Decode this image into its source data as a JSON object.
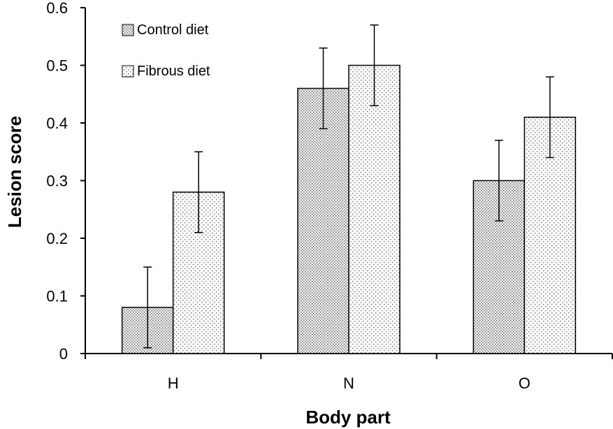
{
  "chart_data": {
    "type": "bar",
    "title": "",
    "xlabel": "Body part",
    "ylabel": "Lesion score",
    "categories": [
      "H",
      "N",
      "O"
    ],
    "series": [
      {
        "name": "Control diet",
        "values": [
          0.08,
          0.46,
          0.3
        ],
        "errors": [
          0.07,
          0.07,
          0.07
        ],
        "pattern": "dense-dots"
      },
      {
        "name": "Fibrous diet",
        "values": [
          0.28,
          0.5,
          0.41
        ],
        "errors": [
          0.07,
          0.07,
          0.07
        ],
        "pattern": "sparse-dots"
      }
    ],
    "ylim": [
      0,
      0.6
    ],
    "yticks": [
      "0",
      "0.1",
      "0.2",
      "0.3",
      "0.4",
      "0.5",
      "0.6"
    ],
    "legend_position": "top-left",
    "grid": false
  }
}
